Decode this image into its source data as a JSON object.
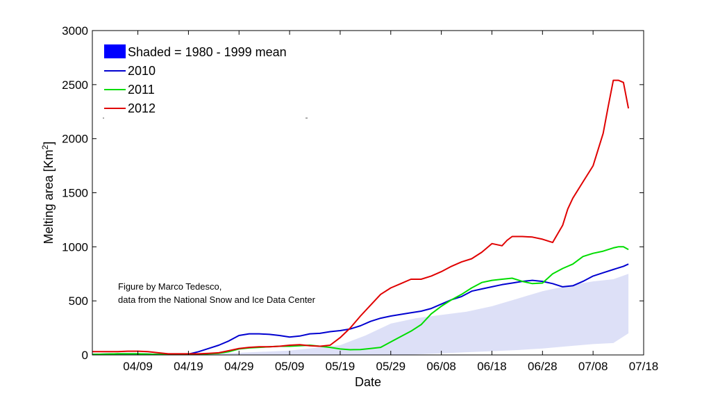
{
  "chart_data": {
    "type": "line",
    "xlabel": "Date",
    "ylabel": "Melting area [Km",
    "ylabel_sup": "2",
    "ylabel_close": "]",
    "xlim": [
      -9,
      100
    ],
    "ylim": [
      0,
      3000
    ],
    "yticks": [
      0,
      500,
      1000,
      1500,
      2000,
      2500,
      3000
    ],
    "xticks": [
      {
        "day": 0,
        "label": "04/09"
      },
      {
        "day": 10,
        "label": "04/19"
      },
      {
        "day": 20,
        "label": "04/29"
      },
      {
        "day": 30,
        "label": "05/09"
      },
      {
        "day": 40,
        "label": "05/19"
      },
      {
        "day": 50,
        "label": "05/29"
      },
      {
        "day": 60,
        "label": "06/08"
      },
      {
        "day": 70,
        "label": "06/18"
      },
      {
        "day": 80,
        "label": "06/28"
      },
      {
        "day": 90,
        "label": "07/08"
      },
      {
        "day": 100,
        "label": "07/18"
      }
    ],
    "band": {
      "name": "Shaded = 1980 - 1999 mean",
      "color": "#dde0f7",
      "legend_color": "#0000ff",
      "x": [
        -9,
        0,
        10,
        20,
        30,
        40,
        45,
        50,
        55,
        60,
        65,
        70,
        75,
        80,
        85,
        90,
        94,
        97
      ],
      "upper": [
        0,
        5,
        10,
        20,
        40,
        90,
        180,
        290,
        340,
        370,
        400,
        450,
        520,
        590,
        640,
        680,
        700,
        750
      ],
      "lower": [
        0,
        0,
        0,
        0,
        0,
        0,
        0,
        0,
        5,
        15,
        25,
        35,
        45,
        60,
        80,
        100,
        110,
        200
      ]
    },
    "series": [
      {
        "name": "2010",
        "color": "#0000d0",
        "x": [
          -9,
          -4,
          0,
          2,
          4,
          6,
          8,
          10,
          12,
          14,
          16,
          18,
          20,
          22,
          24,
          26,
          28,
          30,
          32,
          34,
          36,
          38,
          40,
          42,
          44,
          46,
          48,
          50,
          52,
          54,
          56,
          58,
          60,
          62,
          64,
          66,
          68,
          70,
          72,
          74,
          76,
          78,
          80,
          82,
          84,
          86,
          88,
          90,
          92,
          94,
          96,
          97
        ],
        "values": [
          5,
          10,
          10,
          8,
          5,
          5,
          5,
          8,
          30,
          60,
          90,
          130,
          180,
          195,
          195,
          190,
          180,
          165,
          175,
          195,
          200,
          215,
          225,
          240,
          270,
          310,
          340,
          360,
          375,
          390,
          405,
          430,
          470,
          510,
          540,
          590,
          610,
          630,
          650,
          665,
          680,
          690,
          680,
          660,
          630,
          640,
          680,
          730,
          760,
          790,
          820,
          840
        ]
      },
      {
        "name": "2011",
        "color": "#00dd00",
        "x": [
          -9,
          -4,
          0,
          4,
          8,
          10,
          12,
          14,
          16,
          18,
          20,
          22,
          24,
          26,
          28,
          30,
          32,
          34,
          36,
          38,
          40,
          42,
          44,
          46,
          48,
          50,
          52,
          54,
          56,
          58,
          60,
          62,
          64,
          66,
          68,
          70,
          72,
          74,
          76,
          78,
          80,
          82,
          84,
          86,
          88,
          90,
          92,
          94,
          95,
          96,
          97
        ],
        "values": [
          5,
          10,
          10,
          5,
          5,
          5,
          5,
          10,
          15,
          30,
          55,
          65,
          70,
          75,
          80,
          80,
          85,
          90,
          80,
          70,
          55,
          48,
          50,
          60,
          70,
          120,
          170,
          220,
          280,
          380,
          450,
          510,
          560,
          620,
          670,
          690,
          700,
          710,
          680,
          660,
          665,
          750,
          800,
          840,
          910,
          940,
          960,
          990,
          1000,
          1000,
          975
        ]
      },
      {
        "name": "2012",
        "color": "#e00000",
        "x": [
          -9,
          -4,
          -2,
          0,
          2,
          4,
          6,
          8,
          10,
          12,
          14,
          16,
          18,
          20,
          22,
          24,
          26,
          28,
          30,
          32,
          34,
          36,
          38,
          40,
          42,
          44,
          46,
          48,
          50,
          52,
          54,
          56,
          58,
          60,
          62,
          64,
          66,
          68,
          70,
          72,
          73,
          74,
          76,
          78,
          80,
          82,
          84,
          85,
          86,
          88,
          90,
          92,
          93,
          94,
          95,
          96,
          97
        ],
        "values": [
          30,
          30,
          35,
          35,
          30,
          20,
          10,
          10,
          10,
          10,
          15,
          20,
          40,
          60,
          70,
          75,
          75,
          80,
          90,
          95,
          85,
          80,
          90,
          160,
          250,
          360,
          460,
          560,
          620,
          660,
          700,
          700,
          730,
          770,
          820,
          860,
          890,
          950,
          1030,
          1010,
          1060,
          1095,
          1095,
          1090,
          1070,
          1040,
          1200,
          1350,
          1450,
          1600,
          1750,
          2050,
          2300,
          2540,
          2540,
          2520,
          2280
        ]
      }
    ],
    "annotation": [
      "Figure by Marco Tedesco,",
      "data from the National Snow and Ice Data Center"
    ]
  }
}
